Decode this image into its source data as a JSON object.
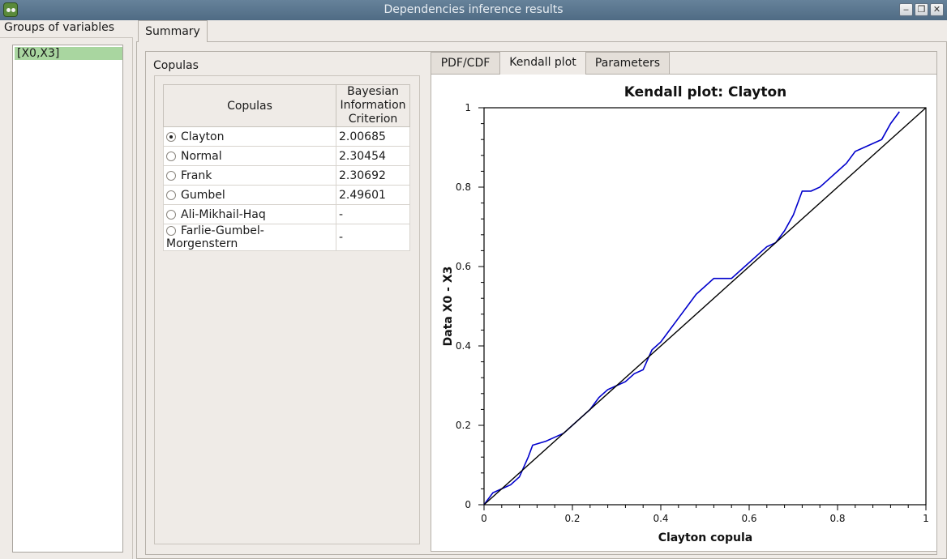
{
  "window": {
    "title": "Dependencies inference results"
  },
  "left_panel": {
    "label": "Groups of variables",
    "groups": [
      "[X0,X3]"
    ]
  },
  "main_tab": "Summary",
  "copulas_section": {
    "label": "Copulas",
    "columns": [
      "Copulas",
      "Bayesian Information Criterion"
    ],
    "rows": [
      {
        "name": "Clayton",
        "bic": "2.00685",
        "selected": true
      },
      {
        "name": "Normal",
        "bic": "2.30454",
        "selected": false
      },
      {
        "name": "Frank",
        "bic": "2.30692",
        "selected": false
      },
      {
        "name": "Gumbel",
        "bic": "2.49601",
        "selected": false
      },
      {
        "name": "Ali-Mikhail-Haq",
        "bic": "-",
        "selected": false
      },
      {
        "name": "Farlie-Gumbel-Morgenstern",
        "bic": "-",
        "selected": false
      }
    ]
  },
  "plot_tabs": [
    {
      "label": "PDF/CDF",
      "active": false
    },
    {
      "label": "Kendall plot",
      "active": true
    },
    {
      "label": "Parameters",
      "active": false
    }
  ],
  "chart_data": {
    "type": "line",
    "title": "Kendall plot: Clayton",
    "xlabel": "Clayton copula",
    "ylabel": "Data X0 - X3",
    "xlim": [
      0,
      1
    ],
    "ylim": [
      0,
      1
    ],
    "xticks": [
      "0",
      "0.2",
      "0.4",
      "0.6",
      "0.8",
      "1"
    ],
    "yticks": [
      "0",
      "0.2",
      "0.4",
      "0.6",
      "0.8",
      "1"
    ],
    "series": [
      {
        "color": "#0000cc",
        "x": [
          0.0,
          0.02,
          0.04,
          0.06,
          0.08,
          0.1,
          0.11,
          0.14,
          0.16,
          0.18,
          0.2,
          0.22,
          0.24,
          0.26,
          0.28,
          0.3,
          0.32,
          0.34,
          0.36,
          0.38,
          0.4,
          0.42,
          0.44,
          0.46,
          0.48,
          0.5,
          0.52,
          0.54,
          0.56,
          0.58,
          0.6,
          0.62,
          0.64,
          0.66,
          0.68,
          0.7,
          0.72,
          0.74,
          0.76,
          0.78,
          0.8,
          0.82,
          0.84,
          0.86,
          0.88,
          0.9,
          0.92,
          0.94
        ],
        "y": [
          0.0,
          0.03,
          0.04,
          0.05,
          0.07,
          0.12,
          0.15,
          0.16,
          0.17,
          0.18,
          0.2,
          0.22,
          0.24,
          0.27,
          0.29,
          0.3,
          0.31,
          0.33,
          0.34,
          0.39,
          0.41,
          0.44,
          0.47,
          0.5,
          0.53,
          0.55,
          0.57,
          0.57,
          0.57,
          0.59,
          0.61,
          0.63,
          0.65,
          0.66,
          0.69,
          0.73,
          0.79,
          0.79,
          0.8,
          0.82,
          0.84,
          0.86,
          0.89,
          0.9,
          0.91,
          0.92,
          0.96,
          0.99
        ]
      },
      {
        "color": "#000000",
        "x": [
          0,
          1
        ],
        "y": [
          0,
          1
        ]
      }
    ],
    "grid": false,
    "legend": "none"
  }
}
